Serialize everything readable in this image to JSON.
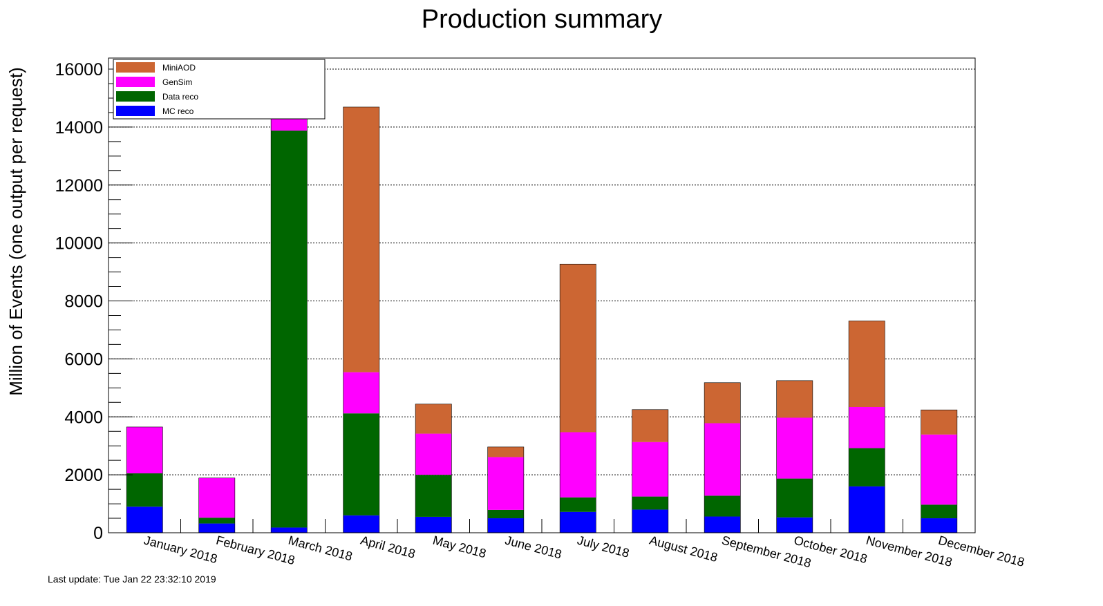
{
  "chart_data": {
    "type": "bar",
    "stacked": true,
    "title": "Production summary",
    "xlabel": "",
    "ylabel": "Million of Events (one output per request)",
    "ylim": [
      0,
      16000
    ],
    "yticks": [
      0,
      2000,
      4000,
      6000,
      8000,
      10000,
      12000,
      14000,
      16000
    ],
    "grid": true,
    "legend_position": "top-left",
    "categories": [
      "January 2018",
      "February 2018",
      "March 2018",
      "April 2018",
      "May 2018",
      "June 2018",
      "July 2018",
      "August 2018",
      "September 2018",
      "October 2018",
      "November 2018",
      "December 2018"
    ],
    "series": [
      {
        "name": "MC reco",
        "color": "#0000ff",
        "values": [
          900,
          320,
          180,
          600,
          550,
          500,
          720,
          800,
          560,
          530,
          1600,
          500
        ]
      },
      {
        "name": "Data reco",
        "color": "#006600",
        "values": [
          1150,
          200,
          13700,
          3520,
          1450,
          290,
          500,
          450,
          720,
          1340,
          1320,
          470
        ]
      },
      {
        "name": "GenSim",
        "color": "#ff00ff",
        "values": [
          1600,
          1370,
          2000,
          1420,
          1420,
          1820,
          2250,
          1880,
          2500,
          2100,
          1420,
          2420
        ]
      },
      {
        "name": "MiniAOD",
        "color": "#cc6633",
        "values": [
          0,
          0,
          0,
          9150,
          1020,
          350,
          5800,
          1120,
          1400,
          1280,
          2970,
          850
        ]
      }
    ]
  },
  "footer": {
    "last_update": "Last update: Tue Jan 22 23:32:10 2019"
  }
}
